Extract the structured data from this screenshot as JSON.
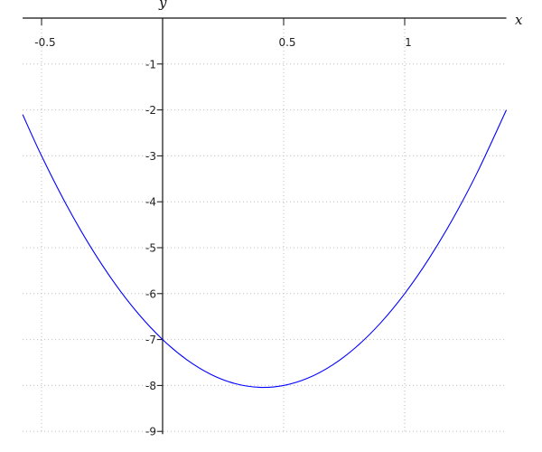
{
  "chart_data": {
    "type": "line",
    "title": "",
    "xlabel": "x",
    "ylabel": "y",
    "xlim": [
      -0.578,
      1.42
    ],
    "ylim": [
      -9,
      0
    ],
    "grid": true,
    "grid_style": "dotted",
    "x_ticks": [
      {
        "value": -0.5,
        "label": "-0.5"
      },
      {
        "value": 0.5,
        "label": "0.5"
      },
      {
        "value": 1,
        "label": "1"
      }
    ],
    "y_ticks": [
      {
        "value": -1,
        "label": "-1"
      },
      {
        "value": -2,
        "label": "-2"
      },
      {
        "value": -3,
        "label": "-3"
      },
      {
        "value": -4,
        "label": "-4"
      },
      {
        "value": -5,
        "label": "-5"
      },
      {
        "value": -6,
        "label": "-6"
      },
      {
        "value": -7,
        "label": "-7"
      },
      {
        "value": -8,
        "label": "-8"
      },
      {
        "value": -9,
        "label": "-9"
      }
    ],
    "series": [
      {
        "color": "#0000ff",
        "x": [
          -0.578,
          -0.5,
          -0.4,
          -0.3,
          -0.2,
          -0.1,
          0,
          0.1,
          0.2,
          0.3,
          0.4,
          0.5,
          0.6,
          0.7,
          0.8,
          0.9,
          1.0,
          1.1,
          1.2,
          1.3,
          1.42
        ],
        "y": [
          -2.1,
          -3.0,
          -4.04,
          -4.96,
          -5.76,
          -6.44,
          -7,
          -7.44,
          -7.76,
          -7.96,
          -8.04,
          -8,
          -7.84,
          -7.56,
          -7.16,
          -6.64,
          -6,
          -5.24,
          -4.36,
          -3.36,
          -2.0
        ]
      }
    ]
  }
}
